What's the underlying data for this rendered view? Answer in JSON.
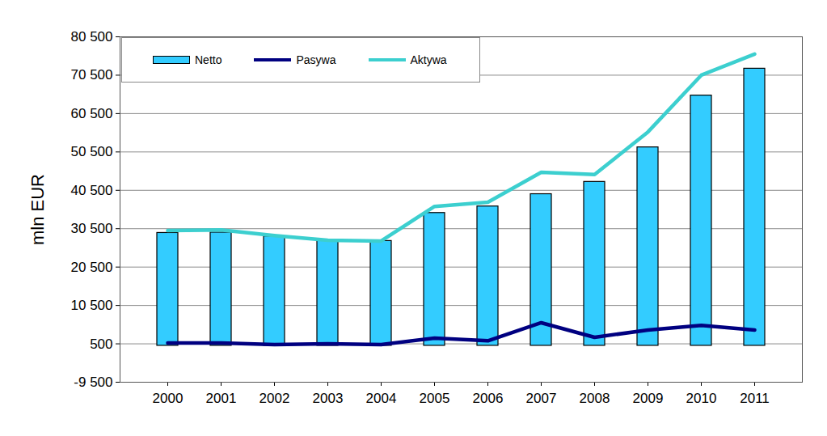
{
  "chart_data": {
    "type": "bar",
    "ylabel": "mln EUR",
    "categories": [
      "2000",
      "2001",
      "2002",
      "2003",
      "2004",
      "2005",
      "2006",
      "2007",
      "2008",
      "2009",
      "2010",
      "2011"
    ],
    "series": [
      {
        "name": "Netto",
        "type": "bar",
        "color": "#33CCFF",
        "values": [
          29400,
          29500,
          28500,
          27500,
          27300,
          34600,
          36300,
          39500,
          42700,
          51700,
          65200,
          72200
        ]
      },
      {
        "name": "Pasywa",
        "type": "line",
        "color": "#000080",
        "values": [
          700,
          700,
          300,
          500,
          300,
          2000,
          1300,
          6000,
          2200,
          4100,
          5300,
          4100
        ]
      },
      {
        "name": "Aktywa",
        "type": "line",
        "color": "#3CCFCF",
        "values": [
          30000,
          30200,
          28700,
          27500,
          27300,
          36300,
          37400,
          45200,
          44600,
          55700,
          70500,
          76000
        ]
      }
    ],
    "ylim": [
      -9500,
      80500
    ],
    "yticks": [
      {
        "value": -9500,
        "label": "-9 500"
      },
      500,
      {
        "value": 10500,
        "label": "10 500"
      },
      {
        "value": 20500,
        "label": "20 500"
      },
      {
        "value": 30500,
        "label": "30 500"
      },
      {
        "value": 40500,
        "label": "40 500"
      },
      {
        "value": 50500,
        "label": "50 500"
      },
      {
        "value": 60500,
        "label": "60 500"
      },
      {
        "value": 70500,
        "label": "70 500"
      },
      {
        "value": 80500,
        "label": "80 500"
      }
    ],
    "grid": true,
    "legend": "top-left"
  }
}
